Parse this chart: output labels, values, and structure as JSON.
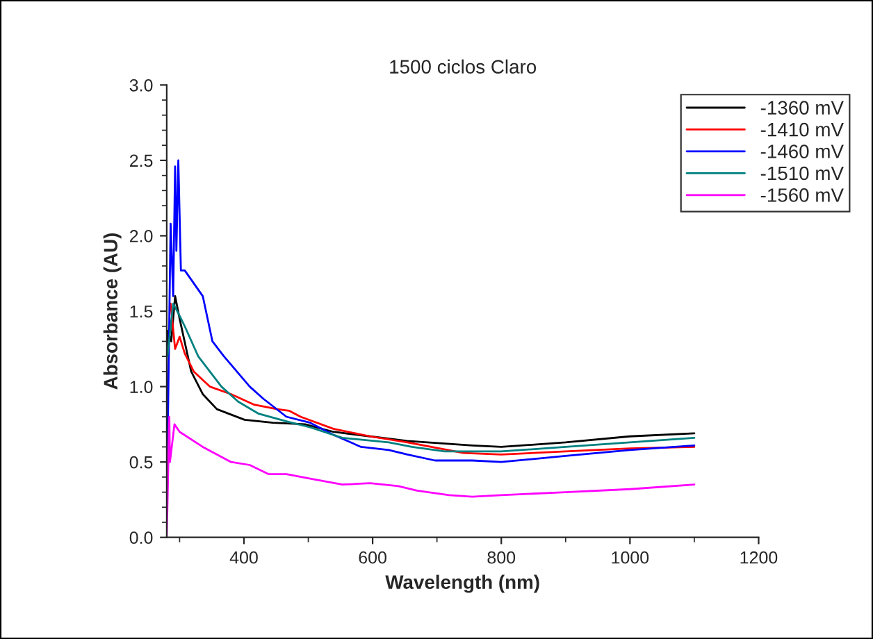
{
  "chart_data": {
    "type": "line",
    "title": "1500 ciclos Claro",
    "xlabel": "Wavelength (nm)",
    "ylabel": "Absorbance (AU)",
    "xlim": [
      280,
      1200
    ],
    "xticks": [
      400,
      600,
      800,
      1000,
      1200
    ],
    "ylim": [
      0,
      3.0
    ],
    "yticks": [
      {
        "value": 0,
        "label": "0.0"
      },
      {
        "value": 0.5,
        "label": "0.5"
      },
      {
        "value": 1.0,
        "label": "1.0"
      },
      {
        "value": 1.5,
        "label": "1.5"
      },
      {
        "value": 2.0,
        "label": "2.0"
      },
      {
        "value": 2.5,
        "label": "2.5"
      },
      {
        "value": 3.0,
        "label": "3.0"
      }
    ],
    "grid": false,
    "legend": "top right",
    "marker": "none",
    "line_style": "solid",
    "series": [
      {
        "name": "-1360 mV",
        "color": "#000000",
        "x": [
          280,
          282,
          287,
          293,
          300,
          318,
          336,
          358,
          401,
          445,
          495,
          539,
          596,
          654,
          755,
          800,
          900,
          1000,
          1100
        ],
        "values": [
          1.2,
          1.37,
          1.3,
          1.6,
          1.45,
          1.1,
          0.95,
          0.85,
          0.78,
          0.76,
          0.75,
          0.7,
          0.67,
          0.64,
          0.61,
          0.6,
          0.63,
          0.67,
          0.69
        ]
      },
      {
        "name": "-1410 mV",
        "color": "#ff0000",
        "x": [
          286,
          293,
          300,
          308,
          322,
          347,
          380,
          416,
          452,
          470,
          488,
          539,
          596,
          654,
          741,
          800,
          900,
          1000,
          1100
        ],
        "values": [
          1.55,
          1.25,
          1.33,
          1.22,
          1.1,
          1.0,
          0.95,
          0.88,
          0.85,
          0.84,
          0.8,
          0.72,
          0.67,
          0.63,
          0.56,
          0.55,
          0.57,
          0.59,
          0.6
        ]
      },
      {
        "name": "-1460 mV",
        "color": "#0000ff",
        "x": [
          281,
          286,
          290,
          293,
          295,
          298,
          302,
          308,
          336,
          351,
          369,
          409,
          430,
          466,
          503,
          539,
          582,
          625,
          654,
          697,
          755,
          800,
          900,
          1000,
          1100
        ],
        "values": [
          0.5,
          2.08,
          1.6,
          2.46,
          1.9,
          2.5,
          1.77,
          1.77,
          1.6,
          1.3,
          1.2,
          1.0,
          0.92,
          0.8,
          0.76,
          0.68,
          0.6,
          0.58,
          0.55,
          0.51,
          0.51,
          0.5,
          0.54,
          0.58,
          0.61
        ]
      },
      {
        "name": "-1510 mV",
        "color": "#008080",
        "x": [
          281,
          290,
          300,
          308,
          329,
          365,
          391,
          423,
          466,
          503,
          553,
          625,
          661,
          712,
          755,
          800,
          900,
          1000,
          1100
        ],
        "values": [
          1.2,
          1.55,
          1.47,
          1.4,
          1.2,
          1.0,
          0.9,
          0.82,
          0.77,
          0.73,
          0.66,
          0.63,
          0.6,
          0.57,
          0.57,
          0.57,
          0.6,
          0.63,
          0.66
        ]
      },
      {
        "name": "-1560 mV",
        "color": "#ff00ff",
        "x": [
          280,
          282,
          284,
          285,
          292,
          300,
          336,
          380,
          409,
          438,
          466,
          503,
          553,
          596,
          640,
          669,
          719,
          755,
          800,
          900,
          1000,
          1100
        ],
        "values": [
          0,
          0.4,
          0.8,
          0.5,
          0.75,
          0.7,
          0.6,
          0.5,
          0.48,
          0.42,
          0.42,
          0.39,
          0.35,
          0.36,
          0.34,
          0.31,
          0.28,
          0.27,
          0.28,
          0.3,
          0.32,
          0.35
        ]
      }
    ]
  }
}
